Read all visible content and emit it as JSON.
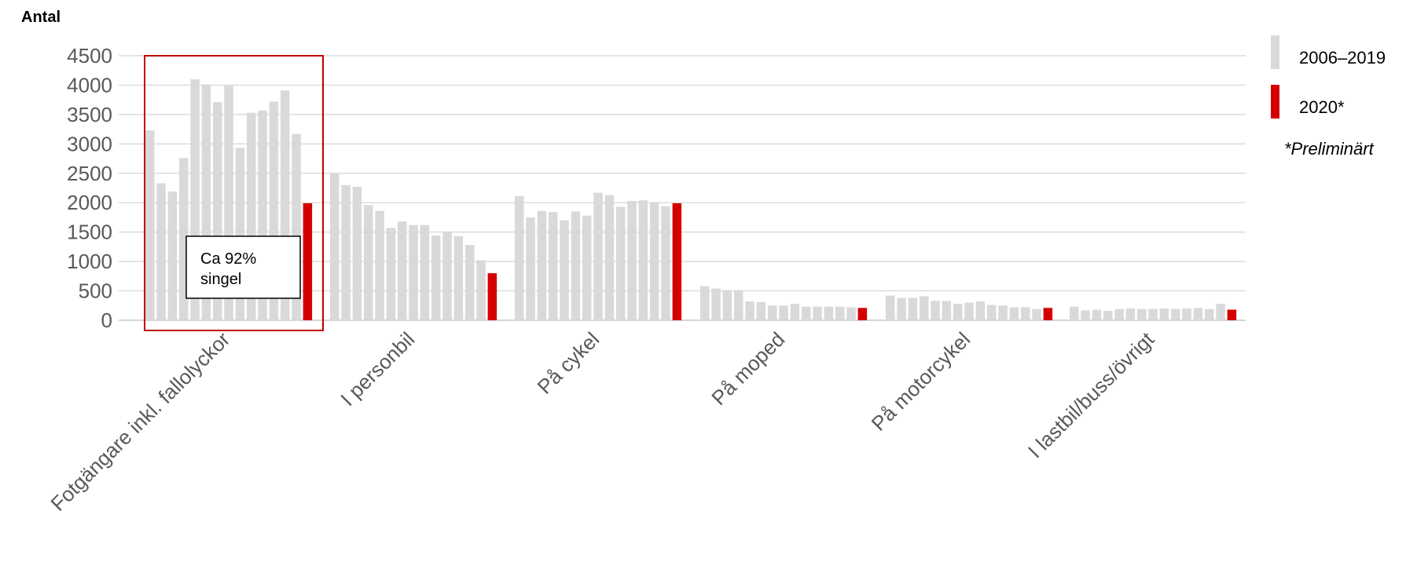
{
  "chart_data": {
    "type": "bar",
    "ylabel": "Antal",
    "ylim": [
      0,
      4500
    ],
    "yticks": [
      0,
      500,
      1000,
      1500,
      2000,
      2500,
      3000,
      3500,
      4000,
      4500
    ],
    "grid": true,
    "legend_position": "right",
    "categories": [
      "Fotgängare inkl. fallolyckor",
      "I personbil",
      "På cykel",
      "På moped",
      "På motorcykel",
      "I lastbil/buss/övrigt"
    ],
    "series": [
      {
        "name": "2006–2019",
        "color": "#d9d9d9",
        "values": [
          [
            3230,
            2330,
            2190,
            2760,
            4100,
            4010,
            3710,
            3990,
            2930,
            3530,
            3570,
            3720,
            3910,
            3170
          ],
          [
            2490,
            2300,
            2270,
            1960,
            1860,
            1570,
            1680,
            1620,
            1620,
            1440,
            1500,
            1430,
            1280,
            1020
          ],
          [
            2110,
            1750,
            1860,
            1840,
            1700,
            1850,
            1780,
            2170,
            2130,
            1930,
            2030,
            2040,
            2010,
            1940
          ],
          [
            580,
            540,
            510,
            510,
            320,
            310,
            250,
            250,
            280,
            230,
            230,
            230,
            230,
            220
          ],
          [
            420,
            380,
            380,
            410,
            330,
            330,
            280,
            300,
            320,
            260,
            250,
            220,
            220,
            190
          ],
          [
            230,
            170,
            180,
            160,
            190,
            200,
            190,
            190,
            200,
            190,
            200,
            210,
            190,
            280
          ]
        ]
      },
      {
        "name": "2020*",
        "color": "#d40000",
        "values": [
          1990,
          800,
          1990,
          210,
          210,
          180
        ]
      }
    ],
    "annotations": {
      "box_text": [
        "Ca 92%",
        "singel"
      ],
      "highlight_category": "Fotgängare inkl. fallolyckor"
    },
    "footnote": "*Preliminärt"
  }
}
